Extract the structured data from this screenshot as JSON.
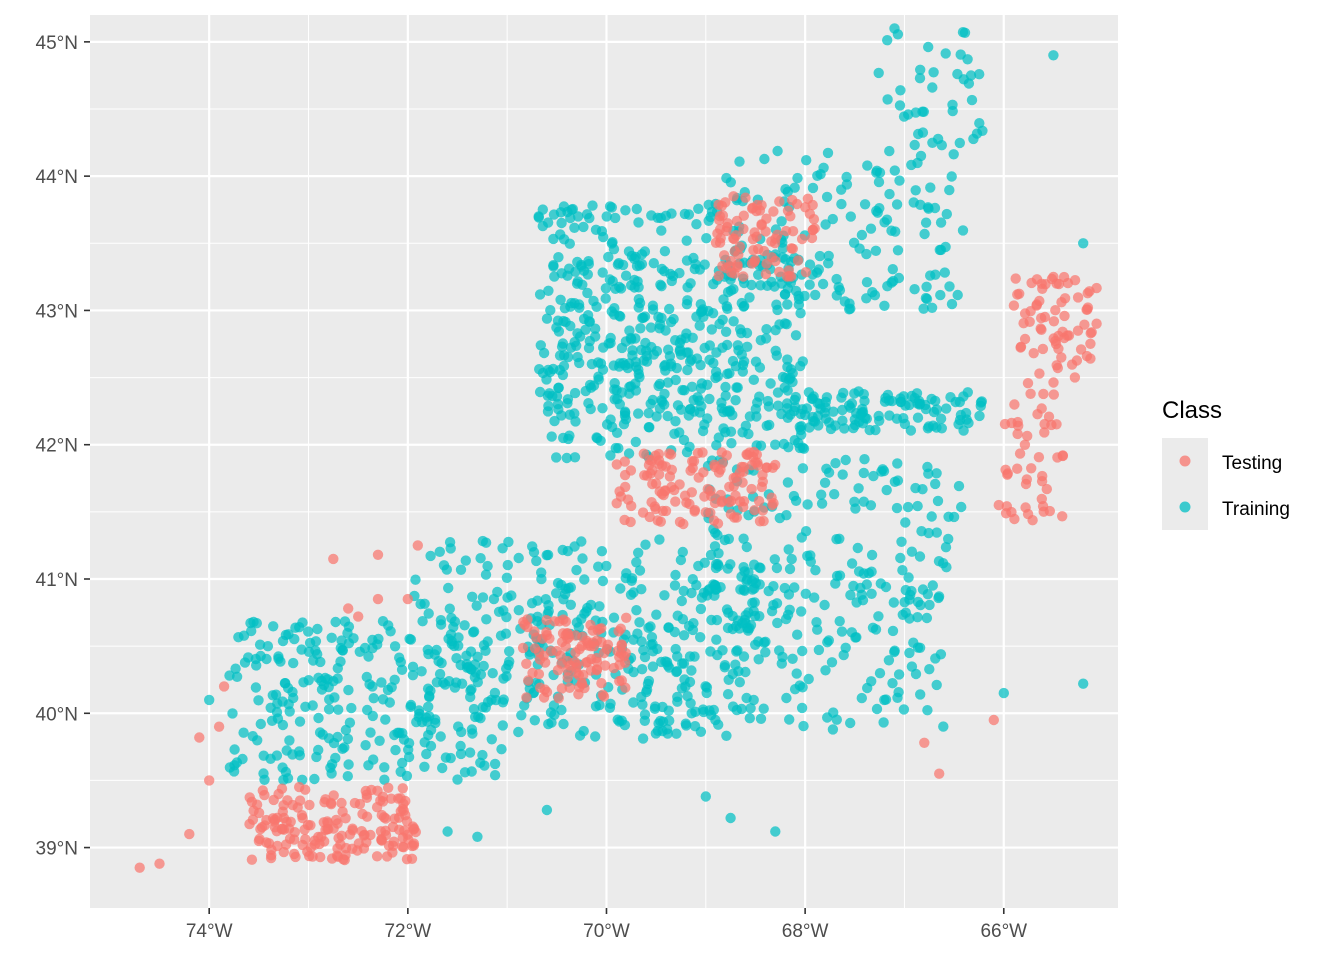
{
  "chart_data": {
    "type": "scatter",
    "title": "",
    "xlabel": "",
    "ylabel": "",
    "xlim": [
      -75.2,
      -64.85
    ],
    "ylim": [
      38.55,
      45.2
    ],
    "x_ticks": [
      -74,
      -72,
      -70,
      -68,
      -66
    ],
    "x_tick_labels": [
      "74°W",
      "72°W",
      "70°W",
      "68°W",
      "66°W"
    ],
    "y_ticks": [
      39,
      40,
      41,
      42,
      43,
      44,
      45
    ],
    "y_tick_labels": [
      "39°N",
      "40°N",
      "41°N",
      "42°N",
      "43°N",
      "44°N",
      "45°N"
    ],
    "grid": true,
    "legend": {
      "title": "Class",
      "placement": "right",
      "entries": [
        {
          "label": "Testing",
          "color": "#F8766D"
        },
        {
          "label": "Training",
          "color": "#00BFC4"
        }
      ]
    },
    "series": [
      {
        "name": "Training",
        "color": "#00BFC4",
        "regions": [
          {
            "lon": [
              -73.8,
              -71.0
            ],
            "lat": [
              39.5,
              40.7
            ],
            "density": 260
          },
          {
            "lon": [
              -72.0,
              -68.5
            ],
            "lat": [
              39.8,
              41.3
            ],
            "density": 260
          },
          {
            "lon": [
              -70.8,
              -66.6
            ],
            "lat": [
              39.9,
              41.0
            ],
            "density": 240
          },
          {
            "lon": [
              -69.0,
              -66.4
            ],
            "lat": [
              40.8,
              41.9
            ],
            "density": 140
          },
          {
            "lon": [
              -70.6,
              -68.0
            ],
            "lat": [
              41.9,
              43.4
            ],
            "density": 320
          },
          {
            "lon": [
              -70.7,
              -68.6
            ],
            "lat": [
              42.2,
              43.8
            ],
            "density": 200
          },
          {
            "lon": [
              -68.1,
              -66.2
            ],
            "lat": [
              42.1,
              42.4
            ],
            "density": 110
          },
          {
            "lon": [
              -68.8,
              -66.4
            ],
            "lat": [
              43.0,
              44.2
            ],
            "density": 160
          },
          {
            "lon": [
              -67.3,
              -66.2
            ],
            "lat": [
              44.2,
              45.1
            ],
            "density": 40
          }
        ],
        "outliers": [
          [
            -74.0,
            40.1
          ],
          [
            -71.6,
            39.12
          ],
          [
            -71.3,
            39.08
          ],
          [
            -70.6,
            39.28
          ],
          [
            -69.0,
            39.38
          ],
          [
            -68.75,
            39.22
          ],
          [
            -68.3,
            39.12
          ],
          [
            -67.72,
            39.88
          ],
          [
            -66.0,
            40.15
          ],
          [
            -65.2,
            40.22
          ],
          [
            -65.5,
            44.9
          ],
          [
            -67.1,
            45.1
          ],
          [
            -65.2,
            43.5
          ],
          [
            -66.95,
            40.45
          ]
        ]
      },
      {
        "name": "Testing",
        "color": "#F8766D",
        "regions": [
          {
            "lon": [
              -73.6,
              -71.9
            ],
            "lat": [
              38.9,
              39.45
            ],
            "density": 170
          },
          {
            "lon": [
              -70.85,
              -69.8
            ],
            "lat": [
              40.1,
              40.72
            ],
            "density": 110
          },
          {
            "lon": [
              -69.9,
              -68.3
            ],
            "lat": [
              41.4,
              41.95
            ],
            "density": 130
          },
          {
            "lon": [
              -68.9,
              -67.9
            ],
            "lat": [
              43.25,
              43.85
            ],
            "density": 90
          },
          {
            "lon": [
              -65.9,
              -65.05
            ],
            "lat": [
              42.45,
              43.25
            ],
            "density": 70
          },
          {
            "lon": [
              -66.0,
              -65.4
            ],
            "lat": [
              41.35,
              42.4
            ],
            "density": 45
          }
        ],
        "outliers": [
          [
            -74.7,
            38.85
          ],
          [
            -74.5,
            38.88
          ],
          [
            -74.2,
            39.1
          ],
          [
            -74.0,
            39.5
          ],
          [
            -74.1,
            39.82
          ],
          [
            -73.9,
            39.9
          ],
          [
            -73.85,
            40.2
          ],
          [
            -73.5,
            39.05
          ],
          [
            -72.6,
            40.78
          ],
          [
            -72.5,
            40.72
          ],
          [
            -72.3,
            40.85
          ],
          [
            -72.0,
            40.85
          ],
          [
            -71.9,
            41.25
          ],
          [
            -72.75,
            41.15
          ],
          [
            -72.3,
            41.18
          ],
          [
            -66.8,
            39.78
          ],
          [
            -66.65,
            39.55
          ],
          [
            -66.1,
            39.95
          ],
          [
            -65.5,
            43.25
          ],
          [
            -66.05,
            41.55
          ]
        ]
      }
    ]
  }
}
